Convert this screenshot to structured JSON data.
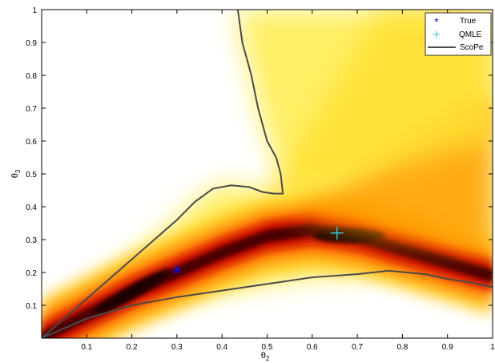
{
  "chart_data": {
    "type": "heatmap",
    "title": "",
    "xlabel": "θ2",
    "ylabel": "θ3",
    "xlim": [
      0,
      1
    ],
    "ylim": [
      0,
      1
    ],
    "xticks": [
      0.1,
      0.2,
      0.3,
      0.4,
      0.5,
      0.6,
      0.7,
      0.8,
      0.9,
      1
    ],
    "yticks": [
      0.1,
      0.2,
      0.3,
      0.4,
      0.5,
      0.6,
      0.7,
      0.8,
      0.9,
      1
    ],
    "xtick_labels": [
      "0.1",
      "0.2",
      "0.3",
      "0.4",
      "0.5",
      "0.6",
      "0.7",
      "0.8",
      "0.9",
      "1"
    ],
    "ytick_labels": [
      "0.1",
      "0.2",
      "0.3",
      "0.4",
      "0.5",
      "0.6",
      "0.7",
      "0.8",
      "0.9",
      "1"
    ],
    "grid": false,
    "legend_position": "top-right",
    "colormap": "hot (dark = high density, white = low)",
    "points": [
      {
        "name": "True",
        "x": 0.3,
        "y": 0.2,
        "marker": "star",
        "color": "#1010d0"
      },
      {
        "name": "QMLE",
        "x": 0.655,
        "y": 0.32,
        "marker": "plus",
        "color": "#30c0d0"
      }
    ],
    "series": [
      {
        "name": "ScoPe",
        "color": "#4a4a4a",
        "x": [
          0.0,
          0.05,
          0.1,
          0.15,
          0.2,
          0.25,
          0.3,
          0.34,
          0.38,
          0.42,
          0.46,
          0.49,
          0.515,
          0.525,
          0.535,
          0.53,
          0.52,
          0.5,
          0.48,
          0.465,
          0.455,
          0.445,
          0.44,
          0.435
        ],
        "y": [
          0.0,
          0.06,
          0.12,
          0.18,
          0.24,
          0.3,
          0.36,
          0.415,
          0.455,
          0.465,
          0.46,
          0.445,
          0.44,
          0.44,
          0.44,
          0.5,
          0.55,
          0.6,
          0.7,
          0.8,
          0.85,
          0.9,
          0.95,
          1.0
        ]
      },
      {
        "name": "ScoPe (lower)",
        "color": "#4a4a4a",
        "x": [
          0.0,
          0.05,
          0.1,
          0.2,
          0.3,
          0.4,
          0.5,
          0.6,
          0.65,
          0.7,
          0.77,
          0.85,
          0.9,
          0.95,
          1.0
        ],
        "y": [
          0.0,
          0.03,
          0.06,
          0.1,
          0.125,
          0.145,
          0.165,
          0.185,
          0.19,
          0.195,
          0.205,
          0.195,
          0.18,
          0.17,
          0.155
        ]
      }
    ],
    "density_ridge": {
      "x": [
        0.0,
        0.1,
        0.2,
        0.3,
        0.4,
        0.5,
        0.6,
        0.655,
        0.7,
        0.8,
        0.9,
        1.0
      ],
      "y": [
        0.0,
        0.07,
        0.14,
        0.2,
        0.26,
        0.31,
        0.33,
        0.32,
        0.31,
        0.27,
        0.23,
        0.19
      ]
    }
  },
  "legend": {
    "items": [
      {
        "label": "True",
        "symbol": "*",
        "color": "#1010d0"
      },
      {
        "label": "QMLE",
        "symbol": "+",
        "color": "#30c0d0"
      },
      {
        "label": "ScoPe",
        "symbol": "line",
        "color": "#4a4a4a"
      }
    ]
  }
}
